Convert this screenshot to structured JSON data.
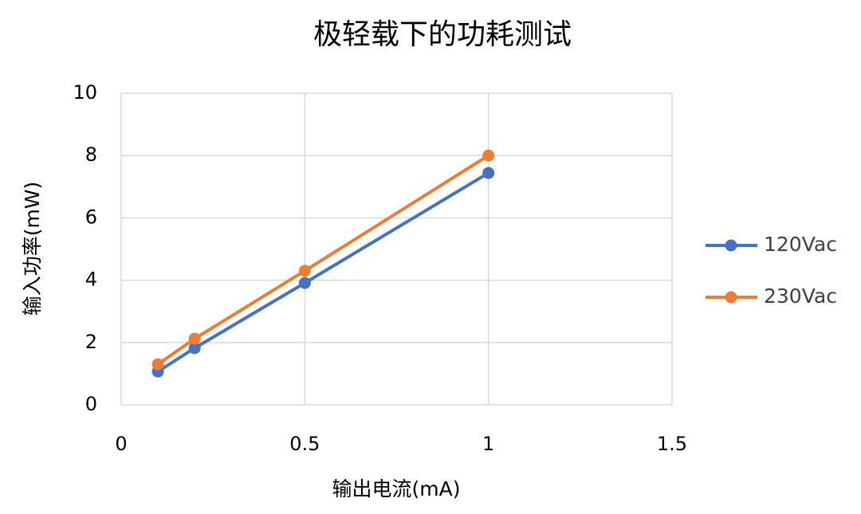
{
  "chart_data": {
    "type": "line",
    "title": "极轻载下的功耗测试",
    "x_label": "输出电流(mA)",
    "y_label": "输入功率(mW)",
    "x": [
      0.1,
      0.2,
      0.5,
      1
    ],
    "series": [
      {
        "name": "120Vac",
        "color": "#4472c4",
        "values": [
          1.07,
          1.82,
          3.91,
          7.44
        ]
      },
      {
        "name": "230Vac",
        "color": "#ed7d31",
        "values": [
          1.3,
          2.12,
          4.3,
          8.0
        ]
      }
    ],
    "xlim": [
      0,
      1.5
    ],
    "xticks": [
      0,
      0.5,
      1,
      1.5
    ],
    "ylim": [
      0,
      10
    ],
    "yticks": [
      0,
      2,
      4,
      6,
      8,
      10
    ],
    "grid": true,
    "legend": "right"
  }
}
